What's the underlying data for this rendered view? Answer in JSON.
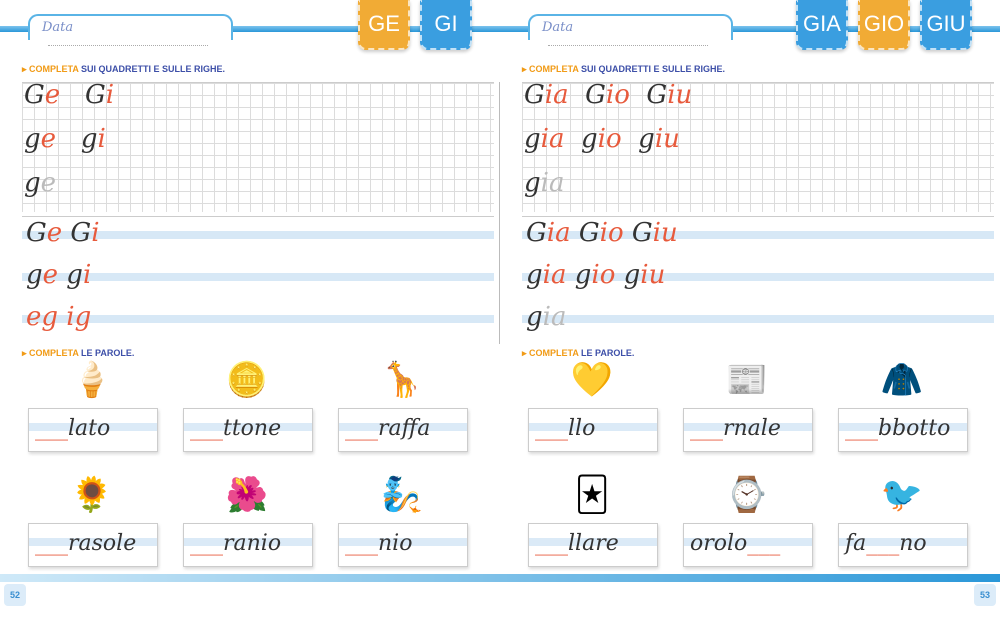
{
  "left": {
    "date_label": "Data",
    "tabs": [
      "GE",
      "GI"
    ],
    "instruction1": {
      "key": "COMPLETA",
      "rest": "SUI QUADRETTI E SULLE RIGHE."
    },
    "grid_rows": [
      [
        {
          "t": "G",
          "c": ""
        },
        {
          "t": "e",
          "c": "r"
        },
        {
          "t": "   G",
          "c": ""
        },
        {
          "t": "i",
          "c": "r"
        }
      ],
      [
        {
          "t": "g",
          "c": ""
        },
        {
          "t": "e",
          "c": "r"
        },
        {
          "t": "   g",
          "c": ""
        },
        {
          "t": "i",
          "c": "r"
        }
      ],
      [
        {
          "t": "g",
          "c": ""
        },
        {
          "t": "e",
          "c": "f"
        }
      ]
    ],
    "line_rows": [
      [
        {
          "t": "G",
          "c": ""
        },
        {
          "t": "e",
          "c": "r"
        },
        {
          "t": " G",
          "c": ""
        },
        {
          "t": "i",
          "c": "r"
        }
      ],
      [
        {
          "t": "g",
          "c": ""
        },
        {
          "t": "e",
          "c": "r"
        },
        {
          "t": " g",
          "c": ""
        },
        {
          "t": "i",
          "c": "r"
        }
      ],
      [
        {
          "t": "eg",
          "c": "r"
        },
        {
          "t": " ",
          "c": ""
        },
        {
          "t": "ig",
          "c": "r"
        }
      ]
    ],
    "instruction2": {
      "key": "COMPLETA",
      "rest": "LE PAROLE."
    },
    "words": [
      {
        "blank": "___",
        "text": "lato",
        "icon": "🍦"
      },
      {
        "blank": "___",
        "text": "ttone",
        "icon": "🪙"
      },
      {
        "blank": "___",
        "text": "raffa",
        "icon": "🦒"
      },
      {
        "blank": "___",
        "text": "rasole",
        "icon": "🌻"
      },
      {
        "blank": "___",
        "text": "ranio",
        "icon": "🌺"
      },
      {
        "blank": "___",
        "text": "nio",
        "icon": "🧞"
      }
    ],
    "page_number": "52"
  },
  "right": {
    "date_label": "Data",
    "tabs": [
      "GIA",
      "GIO",
      "GIU"
    ],
    "instruction1": {
      "key": "COMPLETA",
      "rest": "SUI QUADRETTI E SULLE RIGHE."
    },
    "grid_rows": [
      [
        {
          "t": "G",
          "c": ""
        },
        {
          "t": "ia",
          "c": "r"
        },
        {
          "t": "  G",
          "c": ""
        },
        {
          "t": "io",
          "c": "r"
        },
        {
          "t": "  G",
          "c": ""
        },
        {
          "t": "iu",
          "c": "r"
        }
      ],
      [
        {
          "t": "g",
          "c": ""
        },
        {
          "t": "ia",
          "c": "r"
        },
        {
          "t": "  g",
          "c": ""
        },
        {
          "t": "io",
          "c": "r"
        },
        {
          "t": "  g",
          "c": ""
        },
        {
          "t": "iu",
          "c": "r"
        }
      ],
      [
        {
          "t": "g",
          "c": ""
        },
        {
          "t": "ia",
          "c": "f"
        }
      ]
    ],
    "line_rows": [
      [
        {
          "t": "G",
          "c": ""
        },
        {
          "t": "ia",
          "c": "r"
        },
        {
          "t": " G",
          "c": ""
        },
        {
          "t": "io",
          "c": "r"
        },
        {
          "t": " G",
          "c": ""
        },
        {
          "t": "iu",
          "c": "r"
        }
      ],
      [
        {
          "t": "g",
          "c": ""
        },
        {
          "t": "ia",
          "c": "r"
        },
        {
          "t": " g",
          "c": ""
        },
        {
          "t": "io",
          "c": "r"
        },
        {
          "t": " g",
          "c": ""
        },
        {
          "t": "iu",
          "c": "r"
        }
      ],
      [
        {
          "t": "g",
          "c": ""
        },
        {
          "t": "ia",
          "c": "f"
        }
      ]
    ],
    "instruction2": {
      "key": "COMPLETA",
      "rest": "LE PAROLE."
    },
    "words": [
      {
        "blank": "___",
        "text": "llo",
        "icon": "💛"
      },
      {
        "blank": "___",
        "text": "rnale",
        "icon": "📰"
      },
      {
        "blank": "___",
        "text": "bbotto",
        "icon": "🧥"
      },
      {
        "blank": "___",
        "text": "llare",
        "icon": "🃏"
      },
      {
        "pre": "orolo",
        "blank": "___",
        "text": "",
        "icon": "⌚"
      },
      {
        "pre": "fa",
        "blank": "___",
        "text": "no",
        "icon": "🐦"
      }
    ],
    "page_number": "53"
  },
  "colors": {
    "accent_blue": "#3a9ee0",
    "accent_orange": "#f1ab35",
    "letter_red": "#e75a3c"
  }
}
